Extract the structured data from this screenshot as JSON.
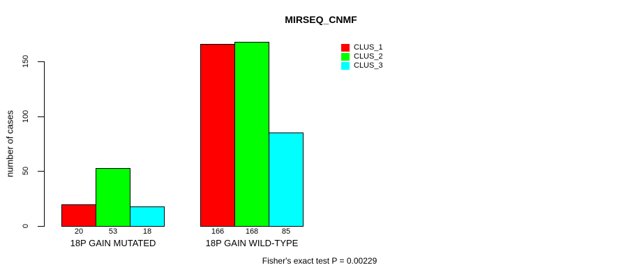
{
  "title": "MIRSEQ_CNMF",
  "ylabel": "number of cases",
  "footer": "Fisher's exact test P = 0.00229",
  "colors": {
    "bar_border": "#000000",
    "axis": "#000000",
    "background": "#ffffff"
  },
  "legend": {
    "items": [
      {
        "label": "CLUS_1",
        "color": "#ff0000"
      },
      {
        "label": "CLUS_2",
        "color": "#00ff00"
      },
      {
        "label": "CLUS_3",
        "color": "#00ffff"
      }
    ]
  },
  "chart_data": {
    "type": "bar",
    "title": "MIRSEQ_CNMF",
    "xlabel": "",
    "ylabel": "number of cases",
    "ylim": [
      0,
      150
    ],
    "yticks": [
      0,
      50,
      100,
      150
    ],
    "grid": false,
    "legend_position": "top-right",
    "categories": [
      "18P GAIN MUTATED",
      "18P GAIN WILD-TYPE"
    ],
    "series": [
      {
        "name": "CLUS_1",
        "color": "#ff0000",
        "values": [
          20,
          166
        ]
      },
      {
        "name": "CLUS_2",
        "color": "#00ff00",
        "values": [
          53,
          168
        ]
      },
      {
        "name": "CLUS_3",
        "color": "#00ffff",
        "values": [
          18,
          85
        ]
      }
    ],
    "bar_value_labels": [
      [
        "20",
        "53",
        "18"
      ],
      [
        "166",
        "168",
        "85"
      ]
    ],
    "annotation": "Fisher's exact test P = 0.00229"
  }
}
